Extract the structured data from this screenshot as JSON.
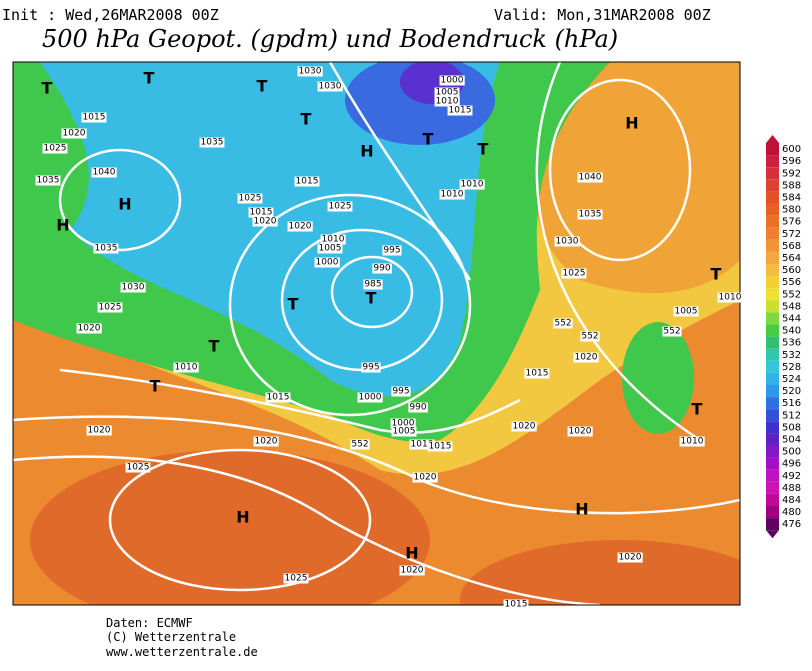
{
  "header": {
    "init": "Init : Wed,26MAR2008 00Z",
    "valid": "Valid: Mon,31MAR2008 00Z",
    "title": "500 hPa Geopot. (gpdm) und Bodendruck (hPa)"
  },
  "colorbar": {
    "labels": [
      600,
      596,
      592,
      588,
      584,
      580,
      576,
      572,
      568,
      564,
      560,
      556,
      552,
      548,
      544,
      540,
      536,
      532,
      528,
      524,
      520,
      516,
      512,
      508,
      504,
      500,
      496,
      492,
      488,
      484,
      480,
      476
    ],
    "colors": [
      "#c0103a",
      "#cc2042",
      "#d8303a",
      "#e04030",
      "#e55028",
      "#e86028",
      "#eb7028",
      "#ee8030",
      "#f09438",
      "#f2a840",
      "#f4bc40",
      "#f2d030",
      "#f0e030",
      "#c8e030",
      "#80d840",
      "#48cc48",
      "#30c070",
      "#30c8a8",
      "#30c8d8",
      "#30b4e8",
      "#3098e8",
      "#3070e0",
      "#3050d8",
      "#4030d0",
      "#6020c8",
      "#8018c8",
      "#a010c8",
      "#c010c0",
      "#d010b0",
      "#c00898",
      "#a00080",
      "#600060"
    ]
  },
  "map": {
    "labels": [
      "T",
      "T",
      "T",
      "T",
      "H",
      "T",
      "H",
      "H",
      "H",
      "T",
      "T",
      "T",
      "T",
      "T",
      "T",
      "H",
      "H",
      "H",
      "T",
      "1030",
      "1030",
      "1000",
      "1005",
      "1010",
      "1015",
      "1015",
      "1020",
      "1025",
      "1035",
      "1035",
      "1040",
      "1015",
      "1025",
      "1025",
      "1015",
      "1020",
      "1020",
      "1010",
      "1005",
      "1000",
      "995",
      "990",
      "985",
      "1035",
      "1030",
      "1025",
      "1020",
      "1010",
      "1015",
      "995",
      "1000",
      "995",
      "990",
      "1000",
      "1005",
      "1010",
      "1015",
      "1020",
      "1020",
      "1025",
      "1020",
      "1020",
      "1020",
      "1015",
      "1020",
      "1025",
      "1030",
      "1035",
      "1040",
      "1010",
      "1010",
      "1005",
      "1010",
      "1010",
      "1020",
      "1020",
      "1025",
      "1015",
      "552",
      "552",
      "552",
      "552"
    ]
  },
  "footer": {
    "source": "Daten: ECMWF",
    "copyright": "(C) Wetterzentrale",
    "url": "www.wetterzentrale.de"
  }
}
